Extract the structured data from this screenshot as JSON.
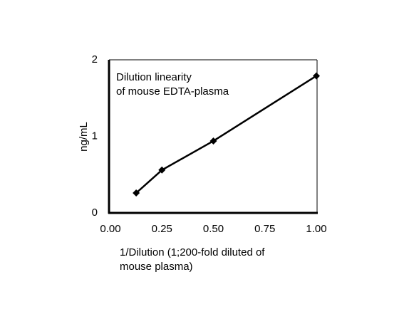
{
  "chart_data": {
    "type": "line",
    "title": [
      "Dilution linearity",
      "of mouse EDTA-plasma"
    ],
    "x_label": [
      "1/Dilution (1;200-fold diluted of",
      "mouse plasma)"
    ],
    "y_label": "ng/mL",
    "x": [
      0.125,
      0.25,
      0.5,
      1.0
    ],
    "series": [
      {
        "color": "#000000",
        "values": [
          0.26,
          0.56,
          0.94,
          1.79
        ]
      }
    ],
    "xlim": [
      0,
      1.0
    ],
    "ylim": [
      0,
      2
    ],
    "xticks": [
      {
        "value": 0,
        "label": "0.00"
      },
      {
        "value": 0.25,
        "label": "0.25"
      },
      {
        "value": 0.5,
        "label": "0.50"
      },
      {
        "value": 0.75,
        "label": "0.75"
      },
      {
        "value": 1.0,
        "label": "1.00"
      }
    ],
    "yticks": [
      0,
      1,
      2
    ],
    "grid": false
  }
}
